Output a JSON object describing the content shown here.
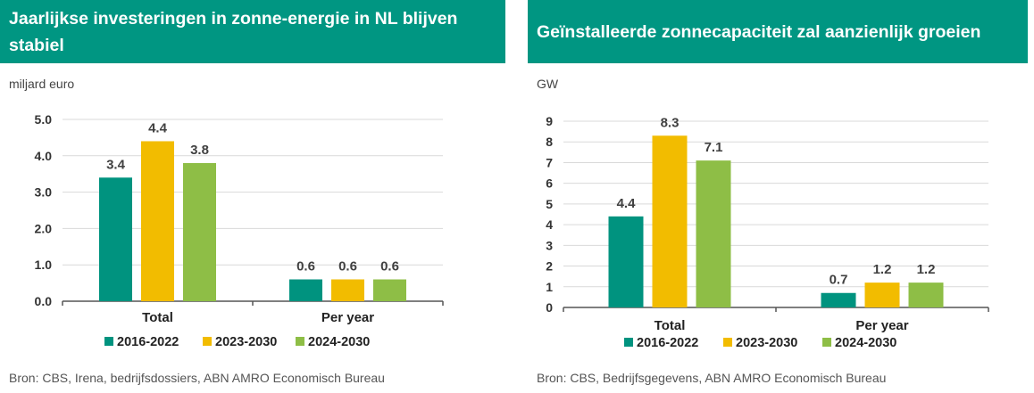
{
  "colors": {
    "title_bg": "#009682",
    "series": [
      "#00937f",
      "#f2bc00",
      "#8ebe46"
    ]
  },
  "charts": [
    {
      "title": "Jaarlijkse investeringen in zonne-energie in NL blijven stabiel",
      "unit": "miljard euro",
      "source": "Bron: CBS, Irena, bedrijfsdossiers, ABN AMRO Economisch Bureau",
      "chart_data": {
        "type": "bar",
        "title": "Jaarlijkse investeringen in zonne-energie in NL blijven stabiel",
        "ylabel": "miljard euro",
        "categories": [
          "Total",
          "Per year"
        ],
        "series": [
          {
            "name": "2016-2022",
            "values": [
              3.4,
              0.6
            ]
          },
          {
            "name": "2023-2030",
            "values": [
              4.4,
              0.6
            ]
          },
          {
            "name": "2024-2030",
            "values": [
              3.8,
              0.6
            ]
          }
        ],
        "ylim": [
          0,
          5
        ],
        "yticks": [
          "0.0",
          "1.0",
          "2.0",
          "3.0",
          "4.0",
          "5.0"
        ],
        "legend": "bottom",
        "grid": true
      }
    },
    {
      "title": "Geïnstalleerde zonnecapaciteit zal aanzienlijk groeien",
      "unit": "GW",
      "source": "Bron: CBS, Bedrijfsgegevens, ABN AMRO Economisch Bureau",
      "chart_data": {
        "type": "bar",
        "title": "Geïnstalleerde zonnecapaciteit zal aanzienlijk groeien",
        "ylabel": "GW",
        "categories": [
          "Total",
          "Per year"
        ],
        "series": [
          {
            "name": "2016-2022",
            "values": [
              4.4,
              0.7
            ]
          },
          {
            "name": "2023-2030",
            "values": [
              8.3,
              1.2
            ]
          },
          {
            "name": "2024-2030",
            "values": [
              7.1,
              1.2
            ]
          }
        ],
        "ylim": [
          0,
          9
        ],
        "yticks": [
          "0",
          "1",
          "2",
          "3",
          "4",
          "5",
          "6",
          "7",
          "8",
          "9"
        ],
        "legend": "bottom",
        "grid": true
      }
    }
  ]
}
